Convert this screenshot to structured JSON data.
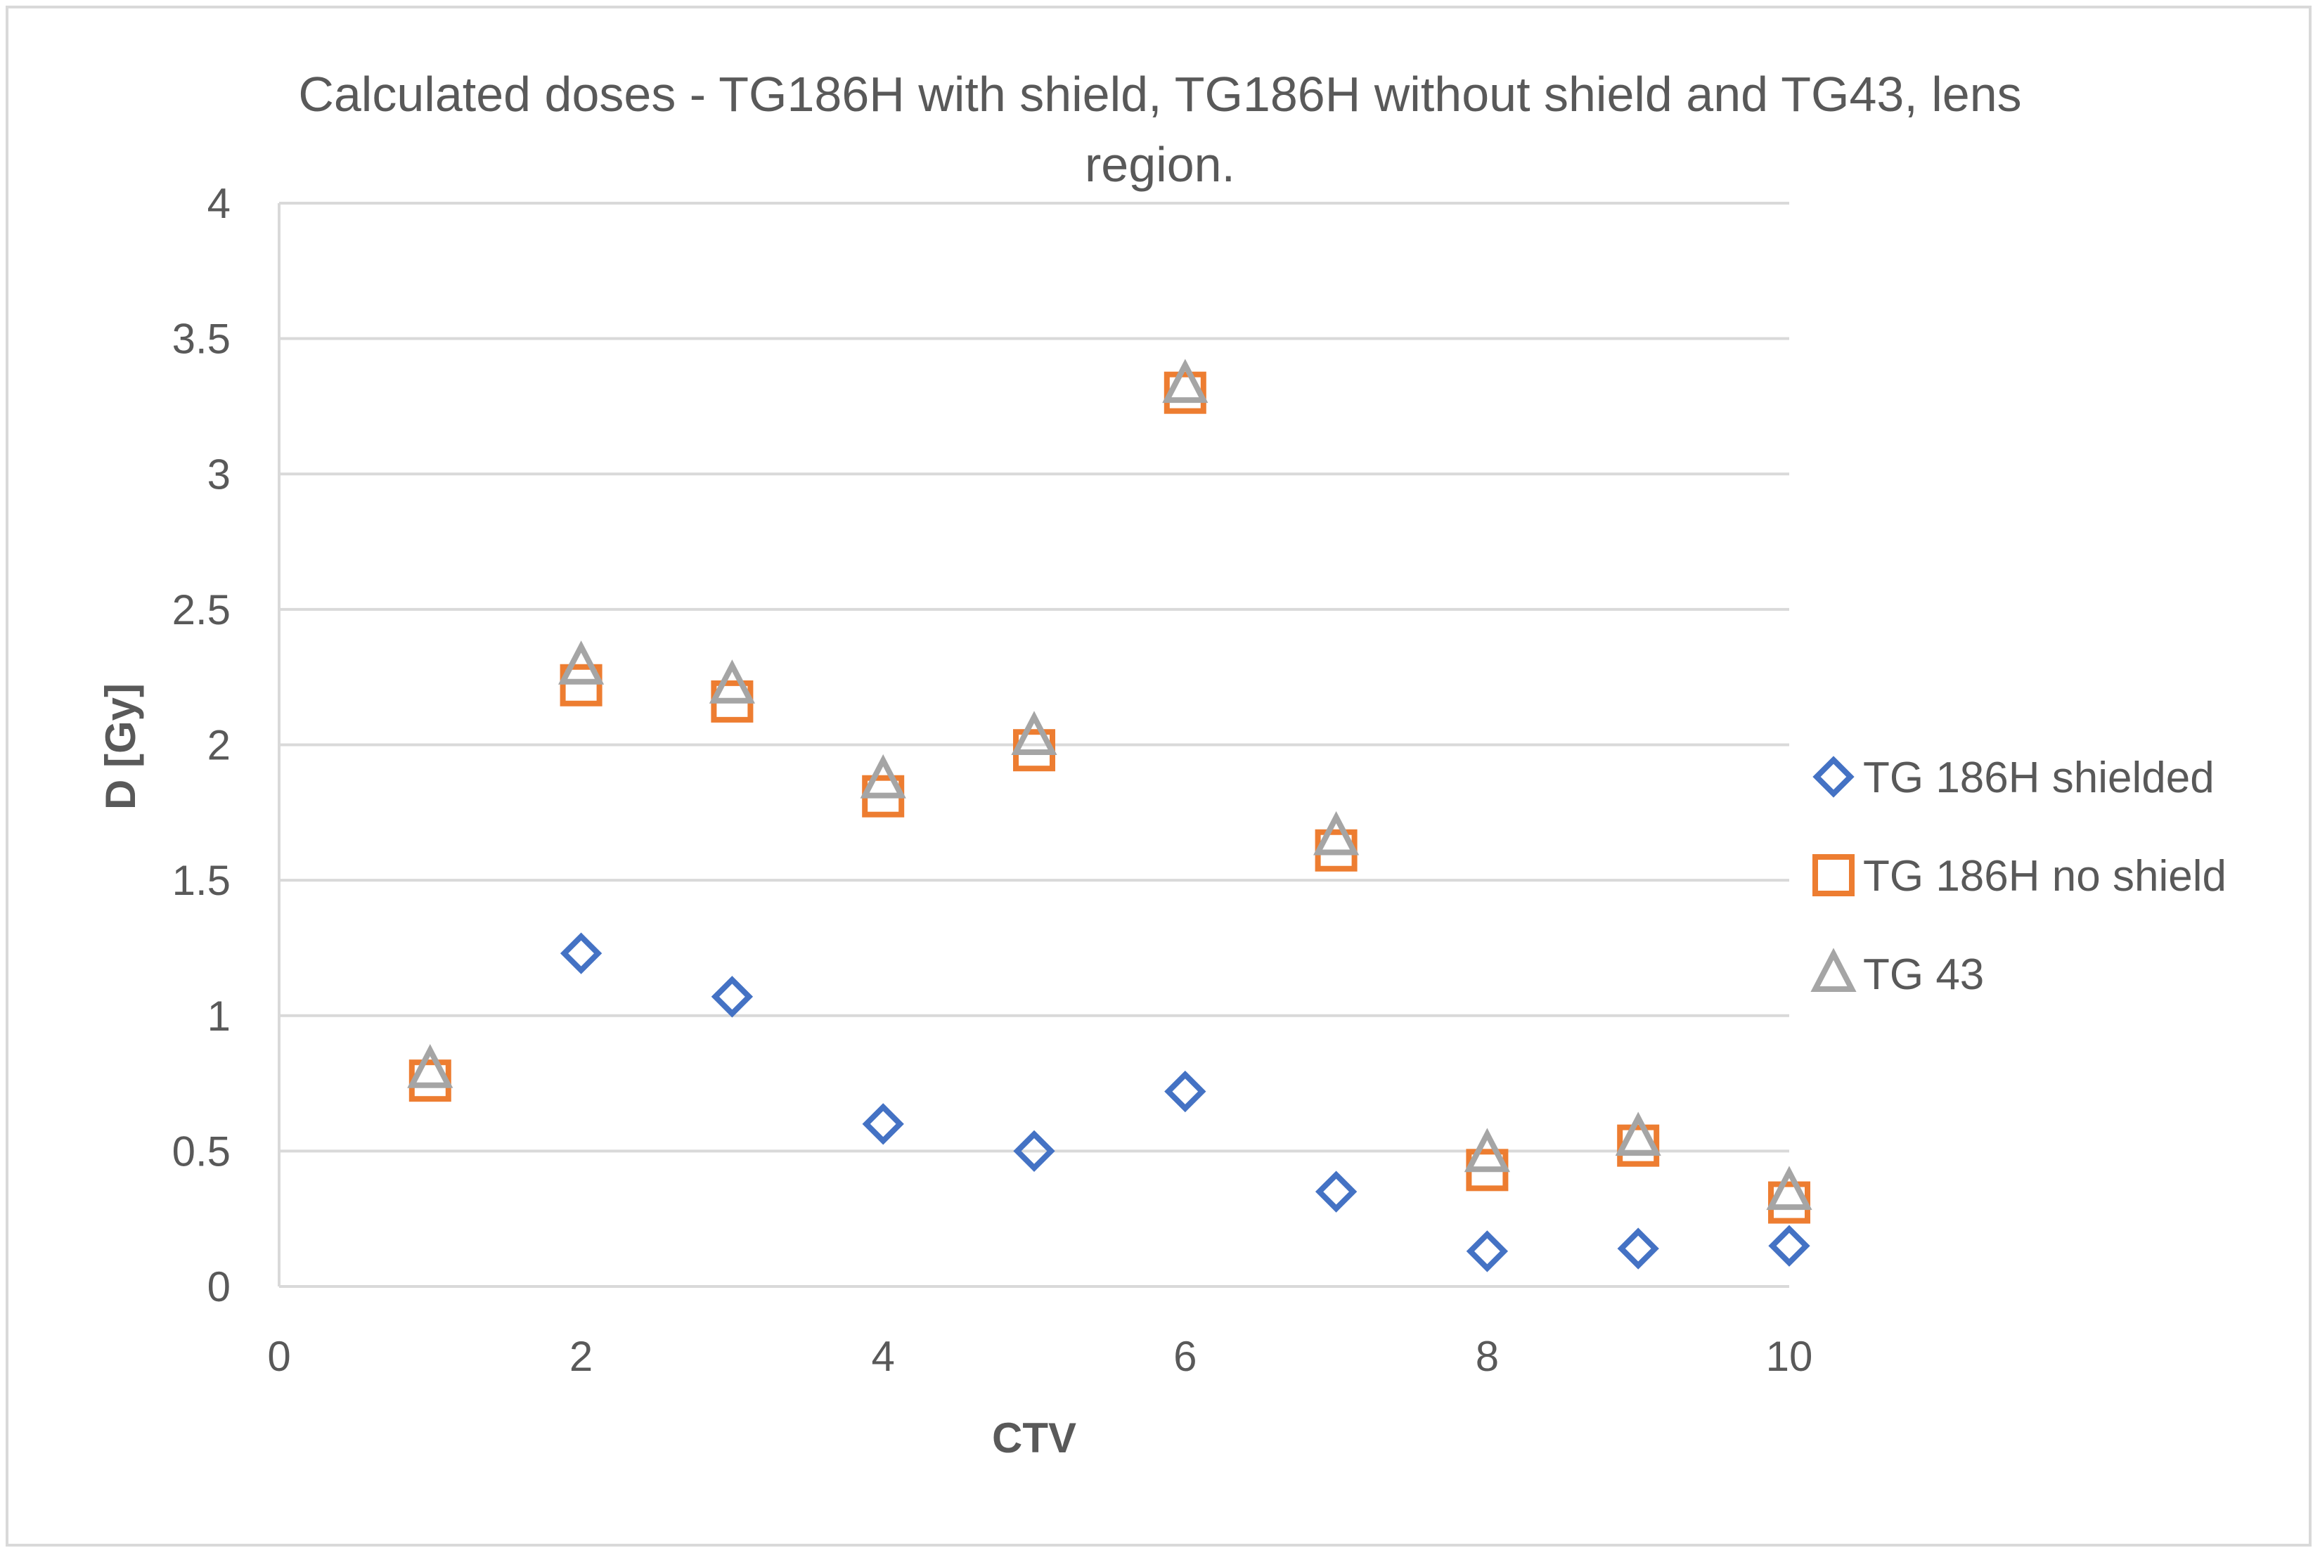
{
  "chart_data": {
    "type": "scatter",
    "title_lines": [
      "Calculated doses - TG186H with shield, TG186H without shield and TG43, lens",
      "region."
    ],
    "xlabel": "CTV",
    "ylabel": "D [Gy]",
    "xlim": [
      0,
      10
    ],
    "ylim": [
      0,
      4
    ],
    "x_ticks": [
      0,
      2,
      4,
      6,
      8,
      10
    ],
    "y_ticks": [
      0,
      0.5,
      1,
      1.5,
      2,
      2.5,
      3,
      3.5,
      4
    ],
    "grid": "horizontal",
    "legend_position": "right",
    "x": [
      1,
      2,
      3,
      4,
      5,
      6,
      7,
      8,
      9,
      10
    ],
    "series": [
      {
        "name": "TG 186H shielded",
        "marker": "diamond",
        "color": "#4472c4",
        "values": [
          null,
          1.23,
          1.07,
          0.6,
          0.5,
          0.72,
          0.35,
          0.13,
          0.14,
          0.15
        ]
      },
      {
        "name": "TG 186H no shield",
        "marker": "square",
        "color": "#ed7d31",
        "values": [
          0.76,
          2.22,
          2.16,
          1.81,
          1.98,
          3.3,
          1.61,
          0.43,
          0.52,
          0.31
        ]
      },
      {
        "name": "TG 43",
        "marker": "triangle",
        "color": "#a5a5a5",
        "values": [
          0.8,
          2.29,
          2.22,
          1.87,
          2.03,
          3.33,
          1.66,
          0.49,
          0.55,
          0.35
        ]
      }
    ]
  }
}
